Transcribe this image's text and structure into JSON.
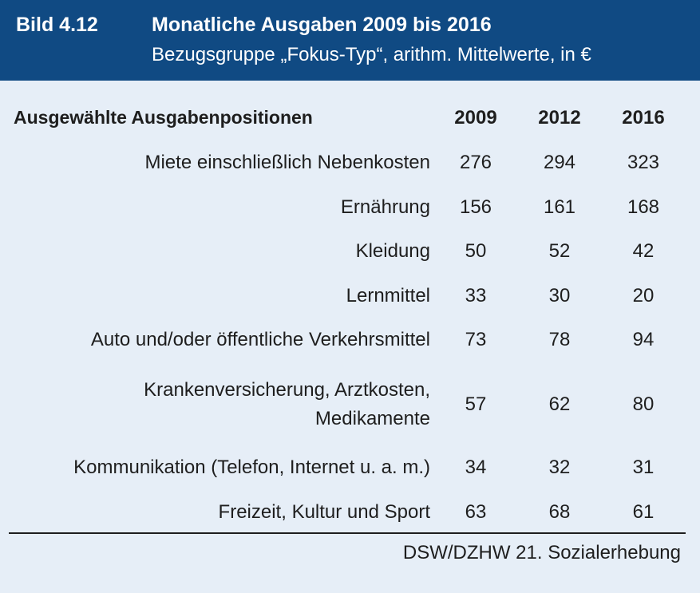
{
  "header": {
    "figure_number": "Bild 4.12",
    "title": "Monatliche Ausgaben 2009 bis 2016",
    "subtitle": "Bezugsgruppe „Fokus-Typ“, arithm. Mittelwerte, in €"
  },
  "table": {
    "column_header": "Ausgewählte Ausgabenpositionen",
    "years": [
      "2009",
      "2012",
      "2016"
    ],
    "rows": [
      {
        "label": "Miete einschließlich Nebenkosten",
        "values": [
          "276",
          "294",
          "323"
        ]
      },
      {
        "label": "Ernährung",
        "values": [
          "156",
          "161",
          "168"
        ]
      },
      {
        "label": "Kleidung",
        "values": [
          "50",
          "52",
          "42"
        ]
      },
      {
        "label": "Lernmittel",
        "values": [
          "33",
          "30",
          "20"
        ]
      },
      {
        "label": "Auto und/oder öffentliche Verkehrsmittel",
        "values": [
          "73",
          "78",
          "94"
        ]
      },
      {
        "label_line1": "Krankenversicherung, Arztkosten,",
        "label_line2": "Medikamente",
        "values": [
          "57",
          "62",
          "80"
        ]
      },
      {
        "label": "Kommunikation (Telefon, Internet u. a. m.)",
        "values": [
          "34",
          "32",
          "31"
        ]
      },
      {
        "label": "Freizeit, Kultur und Sport",
        "values": [
          "63",
          "68",
          "61"
        ]
      }
    ]
  },
  "source": "DSW/DZHW 21. Sozialerhebung",
  "colors": {
    "header_background": "#104a83",
    "body_background": "#e6eef7"
  }
}
